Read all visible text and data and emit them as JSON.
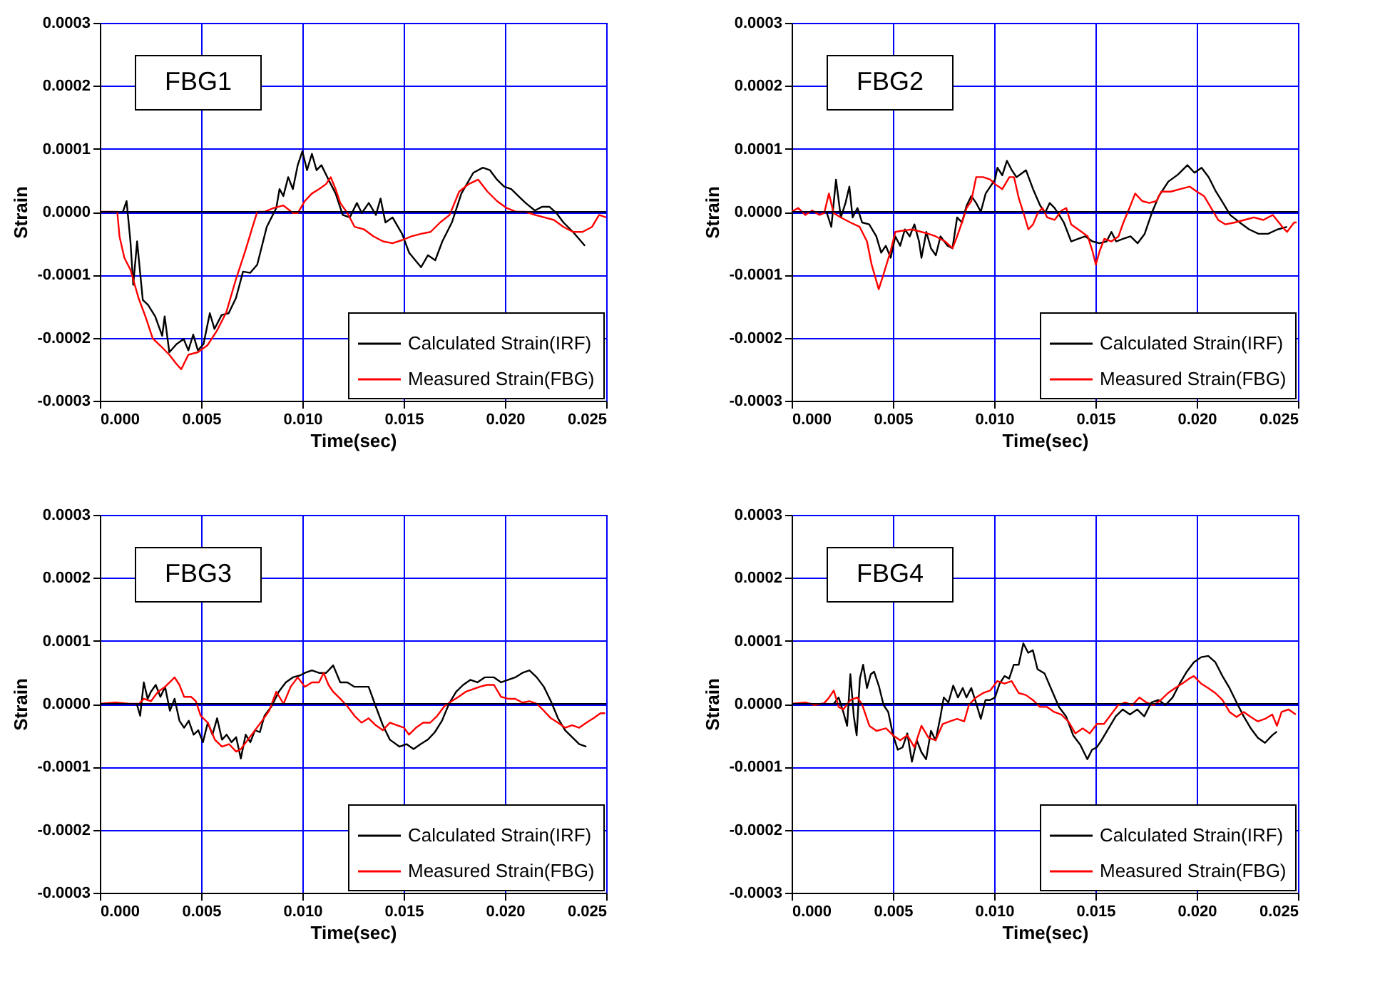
{
  "chart_data": [
    {
      "type": "line",
      "xlabel": "Time(sec)",
      "ylabel": "Strain",
      "annotations": [
        "FBG1"
      ],
      "xlim": [
        0,
        0.025
      ],
      "ylim": [
        -0.0003,
        0.0003
      ],
      "xticks": [
        {
          "value": 0,
          "label": "0.000"
        },
        {
          "value": 0.005,
          "label": "0.005"
        },
        {
          "value": 0.01,
          "label": "0.010"
        },
        {
          "value": 0.015,
          "label": "0.015"
        },
        {
          "value": 0.02,
          "label": "0.020"
        },
        {
          "value": 0.025,
          "label": "0.025"
        }
      ],
      "yticks": [
        {
          "value": -0.0003,
          "label": "-0.0003"
        },
        {
          "value": -0.0002,
          "label": "-0.0002"
        },
        {
          "value": -0.0001,
          "label": "-0.0001"
        },
        {
          "value": 0,
          "label": "0.0000"
        },
        {
          "value": 0.0001,
          "label": "0.0001"
        },
        {
          "value": 0.0002,
          "label": "0.0002"
        },
        {
          "value": 0.0003,
          "label": "0.0003"
        }
      ],
      "grid": true,
      "legend": "bottom right",
      "ref_lines": [
        {
          "axis": "y",
          "value": 0,
          "color": "#000000"
        }
      ],
      "series": [
        {
          "name": "Calculated Strain(IRF)",
          "color": "#000000",
          "x": [
            0.00114,
            0.00132,
            0.00151,
            0.00165,
            0.00184,
            0.00212,
            0.00238,
            0.00273,
            0.00308,
            0.0032,
            0.00343,
            0.00379,
            0.00414,
            0.00437,
            0.00461,
            0.00484,
            0.00512,
            0.00543,
            0.00566,
            0.00601,
            0.00636,
            0.00672,
            0.00707,
            0.00742,
            0.00777,
            0.00824,
            0.00871,
            0.00887,
            0.00906,
            0.0093,
            0.00953,
            0.00977,
            0.01,
            0.01023,
            0.01047,
            0.0107,
            0.01094,
            0.01129,
            0.01164,
            0.01199,
            0.01234,
            0.01269,
            0.01293,
            0.01328,
            0.01363,
            0.01386,
            0.0141,
            0.01445,
            0.01492,
            0.01527,
            0.01586,
            0.0162,
            0.01656,
            0.01691,
            0.01738,
            0.01785,
            0.01844,
            0.01891,
            0.01926,
            0.01961,
            0.01996,
            0.02031,
            0.02066,
            0.02102,
            0.02148,
            0.02184,
            0.02219,
            0.02254,
            0.02289,
            0.02336,
            0.02395
          ],
          "values": [
            0,
            1.7e-05,
            -4.7e-05,
            -0.000116,
            -4.7e-05,
            -0.00014,
            -0.000148,
            -0.000166,
            -0.000197,
            -0.000166,
            -0.000223,
            -0.00021,
            -0.000202,
            -0.00022,
            -0.000195,
            -0.00022,
            -0.00021,
            -0.000161,
            -0.000186,
            -0.000164,
            -0.000161,
            -0.000137,
            -9.5e-05,
            -9.7e-05,
            -8.4e-05,
            -2.4e-05,
            6e-06,
            3.6e-05,
            2.5e-05,
            5.5e-05,
            3.6e-05,
            7.4e-05,
            9.6e-05,
            6.6e-05,
            9.2e-05,
            6.6e-05,
            7.4e-05,
            5.1e-05,
            2.9e-05,
            -5e-06,
            -9e-06,
            1.4e-05,
            -2e-06,
            1.4e-05,
            -5e-06,
            2.1e-05,
            -1.7e-05,
            -9e-06,
            -3.5e-05,
            -6.5e-05,
            -8.8e-05,
            -6.9e-05,
            -7.7e-05,
            -4.7e-05,
            -1.7e-05,
            2.9e-05,
            6.2e-05,
            7e-05,
            6.6e-05,
            5.1e-05,
            4e-05,
            3.6e-05,
            2.5e-05,
            1.4e-05,
            2e-06,
            8e-06,
            8e-06,
            -2e-06,
            -1.7e-05,
            -3.2e-05,
            -5.4e-05
          ]
        },
        {
          "name": "Measured Strain(FBG)",
          "color": "#ff0000",
          "x": [
            0,
            0.00086,
            0.00097,
            0.00121,
            0.00151,
            0.00191,
            0.00226,
            0.00261,
            0.00297,
            0.00343,
            0.00379,
            0.00402,
            0.00437,
            0.00484,
            0.00531,
            0.00578,
            0.00625,
            0.00672,
            0.00718,
            0.00754,
            0.00777,
            0.00812,
            0.00859,
            0.00906,
            0.00953,
            0.00977,
            0.01012,
            0.01047,
            0.01082,
            0.01117,
            0.0114,
            0.01164,
            0.01187,
            0.01222,
            0.01258,
            0.01305,
            0.01351,
            0.01398,
            0.01445,
            0.01492,
            0.01539,
            0.01586,
            0.01633,
            0.0168,
            0.01727,
            0.01774,
            0.01821,
            0.01868,
            0.01914,
            0.01961,
            0.02008,
            0.02055,
            0.02102,
            0.02148,
            0.02195,
            0.02242,
            0.02289,
            0.02336,
            0.02383,
            0.0243,
            0.02465,
            0.025
          ],
          "values": [
            0,
            0,
            -3.9e-05,
            -7.3e-05,
            -9.2e-05,
            -0.000137,
            -0.000167,
            -0.000201,
            -0.000212,
            -0.000227,
            -0.000242,
            -0.00025,
            -0.000227,
            -0.000223,
            -0.000212,
            -0.000189,
            -0.000159,
            -0.000107,
            -6.2e-05,
            -2.4e-05,
            0,
            0,
            6e-06,
            1e-05,
            -2e-06,
            -2e-06,
            1.7e-05,
            2.9e-05,
            3.6e-05,
            4.4e-05,
            5.5e-05,
            3.6e-05,
            1.4e-05,
            -2e-06,
            -2.4e-05,
            -2.8e-05,
            -3.9e-05,
            -4.7e-05,
            -5e-05,
            -4.5e-05,
            -3.9e-05,
            -3.5e-05,
            -3.2e-05,
            -1.7e-05,
            -5e-06,
            3.2e-05,
            4.4e-05,
            5.1e-05,
            3.2e-05,
            1.7e-05,
            6e-06,
            0,
            0,
            -5e-06,
            -9e-06,
            -1.3e-05,
            -2.4e-05,
            -3.2e-05,
            -3.2e-05,
            -2.4e-05,
            -5e-06,
            -9e-06
          ]
        }
      ]
    },
    {
      "type": "line",
      "xlabel": "Time(sec)",
      "ylabel": "Strain",
      "annotations": [
        "FBG2"
      ],
      "xlim": [
        0,
        0.025
      ],
      "ylim": [
        -0.0003,
        0.0003
      ],
      "xticks": [
        {
          "value": 0,
          "label": "0.000"
        },
        {
          "value": 0.005,
          "label": "0.005"
        },
        {
          "value": 0.01,
          "label": "0.010"
        },
        {
          "value": 0.015,
          "label": "0.015"
        },
        {
          "value": 0.02,
          "label": "0.020"
        },
        {
          "value": 0.025,
          "label": "0.025"
        }
      ],
      "yticks": [
        {
          "value": -0.0003,
          "label": "-0.0003"
        },
        {
          "value": -0.0002,
          "label": "-0.0002"
        },
        {
          "value": -0.0001,
          "label": "-0.0001"
        },
        {
          "value": 0,
          "label": "0.0000"
        },
        {
          "value": 0.0001,
          "label": "0.0001"
        },
        {
          "value": 0.0002,
          "label": "0.0002"
        },
        {
          "value": 0.0003,
          "label": "0.0003"
        }
      ],
      "grid": true,
      "legend": "bottom right",
      "ref_lines": [
        {
          "axis": "y",
          "value": 0,
          "color": "#000000"
        }
      ],
      "series": [
        {
          "name": "Calculated Strain(IRF)",
          "color": "#000000",
          "x": [
            0.00172,
            0.00196,
            0.00219,
            0.00243,
            0.00266,
            0.00285,
            0.00301,
            0.00325,
            0.00348,
            0.00383,
            0.00418,
            0.00442,
            0.00465,
            0.00489,
            0.00512,
            0.00536,
            0.00559,
            0.00583,
            0.00606,
            0.00629,
            0.00641,
            0.00665,
            0.00688,
            0.00712,
            0.00735,
            0.0077,
            0.00794,
            0.00817,
            0.00841,
            0.00864,
            0.00887,
            0.00911,
            0.00934,
            0.00958,
            0.00981,
            0.01004,
            0.01016,
            0.0104,
            0.01063,
            0.01087,
            0.0111,
            0.01157,
            0.01192,
            0.01227,
            0.01251,
            0.01274,
            0.01298,
            0.01321,
            0.01344,
            0.0138,
            0.01415,
            0.0145,
            0.01485,
            0.0152,
            0.01555,
            0.01579,
            0.01602,
            0.01637,
            0.01673,
            0.01708,
            0.01743,
            0.01778,
            0.01813,
            0.0186,
            0.01907,
            0.01954,
            0.01989,
            0.02024,
            0.02059,
            0.02095,
            0.0213,
            0.02165,
            0.02212,
            0.02259,
            0.02305,
            0.02352,
            0.02399,
            0.02446
          ],
          "values": [
            0,
            -2.4e-05,
            5.1e-05,
            -9e-06,
            1.4e-05,
            4e-05,
            -9e-06,
            6e-06,
            -1.7e-05,
            -2e-05,
            -3.9e-05,
            -6.5e-05,
            -5.4e-05,
            -7.3e-05,
            -3.9e-05,
            -5.4e-05,
            -2.8e-05,
            -3.9e-05,
            -2e-05,
            -4.7e-05,
            -7.3e-05,
            -3.2e-05,
            -5.8e-05,
            -6.9e-05,
            -3.9e-05,
            -5.4e-05,
            -5.8e-05,
            -9e-06,
            -1.7e-05,
            1e-05,
            2.5e-05,
            1.4e-05,
            0,
            2.9e-05,
            4e-05,
            5.1e-05,
            7e-05,
            5.8e-05,
            8.1e-05,
            6.6e-05,
            5.5e-05,
            6.6e-05,
            3.6e-05,
            1e-05,
            -2e-06,
            1.4e-05,
            6e-06,
            -5e-06,
            -1.7e-05,
            -4.7e-05,
            -4.3e-05,
            -3.9e-05,
            -4.7e-05,
            -5e-05,
            -4.7e-05,
            -3.2e-05,
            -4.7e-05,
            -4.3e-05,
            -3.9e-05,
            -5e-05,
            -3.5e-05,
            -2e-06,
            2.5e-05,
            4.8e-05,
            5.9e-05,
            7.4e-05,
            6.2e-05,
            7e-05,
            5.5e-05,
            3.2e-05,
            1.4e-05,
            -5e-06,
            -1.7e-05,
            -2.8e-05,
            -3.5e-05,
            -3.5e-05,
            -2.8e-05,
            -2.4e-05
          ]
        },
        {
          "name": "Measured Strain(FBG)",
          "color": "#ff0000",
          "x": [
            0,
            0.00032,
            0.00067,
            0.00102,
            0.00137,
            0.00161,
            0.00184,
            0.00207,
            0.00243,
            0.0029,
            0.00336,
            0.00372,
            0.00395,
            0.0043,
            0.00454,
            0.00489,
            0.00512,
            0.00547,
            0.00594,
            0.00641,
            0.00676,
            0.00711,
            0.00758,
            0.00794,
            0.00817,
            0.00841,
            0.00864,
            0.00887,
            0.00911,
            0.00946,
            0.00981,
            0.01004,
            0.0104,
            0.01075,
            0.01098,
            0.01122,
            0.01145,
            0.01169,
            0.01192,
            0.01215,
            0.01239,
            0.01262,
            0.01298,
            0.01333,
            0.01356,
            0.0138,
            0.01415,
            0.01462,
            0.01485,
            0.01502,
            0.01521,
            0.01544,
            0.01579,
            0.01614,
            0.01638,
            0.01673,
            0.01696,
            0.01731,
            0.01766,
            0.01801,
            0.01825,
            0.01872,
            0.01919,
            0.01966,
            0.02001,
            0.02036,
            0.02071,
            0.02106,
            0.02142,
            0.02188,
            0.02235,
            0.02282,
            0.02329,
            0.02376,
            0.02423,
            0.02446,
            0.02481,
            0.02493
          ],
          "values": [
            0,
            6e-06,
            -5e-06,
            2e-06,
            -5e-06,
            -2e-06,
            2.9e-05,
            -2e-06,
            -9e-06,
            -1.7e-05,
            -2.4e-05,
            -4.7e-05,
            -8.4e-05,
            -0.000123,
            -9.9e-05,
            -6.2e-05,
            -3.2e-05,
            -3e-05,
            -2.8e-05,
            -3.2e-05,
            -3.5e-05,
            -3.9e-05,
            -4.7e-05,
            -5.8e-05,
            -3.9e-05,
            -1.7e-05,
            6e-06,
            1.7e-05,
            5.5e-05,
            5.5e-05,
            5.1e-05,
            4.4e-05,
            3.6e-05,
            5.5e-05,
            5.5e-05,
            2.1e-05,
            -2e-06,
            -2.8e-05,
            -2e-05,
            -2e-06,
            6e-06,
            -9e-06,
            -1.3e-05,
            2e-06,
            6e-06,
            -2e-05,
            -2.8e-05,
            -3.9e-05,
            -6.2e-05,
            -8.4e-05,
            -6.2e-05,
            -4.3e-05,
            -4.7e-05,
            -3.9e-05,
            -1.7e-05,
            1e-05,
            2.9e-05,
            1.7e-05,
            1.4e-05,
            1.7e-05,
            3.2e-05,
            3.2e-05,
            3.6e-05,
            4e-05,
            3.2e-05,
            2.5e-05,
            6e-06,
            -1.3e-05,
            -2e-05,
            -1.7e-05,
            -1.3e-05,
            -9e-06,
            -1.3e-05,
            -5e-06,
            -2.4e-05,
            -3.2e-05,
            -1.7e-05,
            -1.7e-05
          ]
        }
      ]
    },
    {
      "type": "line",
      "xlabel": "Time(sec)",
      "ylabel": "Strain",
      "annotations": [
        "FBG3"
      ],
      "xlim": [
        0,
        0.025
      ],
      "ylim": [
        -0.0003,
        0.0003
      ],
      "xticks": [
        {
          "value": 0,
          "label": "0.000"
        },
        {
          "value": 0.005,
          "label": "0.005"
        },
        {
          "value": 0.01,
          "label": "0.010"
        },
        {
          "value": 0.015,
          "label": "0.015"
        },
        {
          "value": 0.02,
          "label": "0.020"
        },
        {
          "value": 0.025,
          "label": "0.025"
        }
      ],
      "yticks": [
        {
          "value": -0.0003,
          "label": "-0.0003"
        },
        {
          "value": -0.0002,
          "label": "-0.0002"
        },
        {
          "value": -0.0001,
          "label": "-0.0001"
        },
        {
          "value": 0,
          "label": "0.0000"
        },
        {
          "value": 0.0001,
          "label": "0.0001"
        },
        {
          "value": 0.0002,
          "label": "0.0002"
        },
        {
          "value": 0.0003,
          "label": "0.0003"
        }
      ],
      "grid": true,
      "legend": "bottom right",
      "ref_lines": [
        {
          "axis": "y",
          "value": 0,
          "color": "#000000"
        }
      ],
      "series": [
        {
          "name": "Calculated Strain(IRF)",
          "color": "#000000",
          "x": [
            0.00182,
            0.00199,
            0.00217,
            0.00236,
            0.00252,
            0.00276,
            0.00299,
            0.00322,
            0.00346,
            0.00369,
            0.00393,
            0.00416,
            0.00439,
            0.00463,
            0.00486,
            0.00509,
            0.00533,
            0.00556,
            0.00579,
            0.00603,
            0.00626,
            0.0065,
            0.00673,
            0.00696,
            0.0072,
            0.00743,
            0.00766,
            0.0079,
            0.00813,
            0.00848,
            0.00883,
            0.00918,
            0.00953,
            0.00988,
            0.01012,
            0.01047,
            0.01082,
            0.01117,
            0.01152,
            0.01187,
            0.01222,
            0.01257,
            0.01292,
            0.01327,
            0.01362,
            0.01397,
            0.01432,
            0.01479,
            0.01514,
            0.01549,
            0.01584,
            0.01619,
            0.01654,
            0.01689,
            0.01724,
            0.01759,
            0.01794,
            0.01829,
            0.01864,
            0.019,
            0.01946,
            0.01981,
            0.02016,
            0.02051,
            0.02086,
            0.02121,
            0.02157,
            0.02192,
            0.02227,
            0.02262,
            0.02297,
            0.02332,
            0.02367,
            0.02402
          ],
          "values": [
            0,
            -1.9e-05,
            3.4e-05,
            8e-06,
            1.9e-05,
            3e-05,
            1.1e-05,
            2.7e-05,
            -1.1e-05,
            8e-06,
            -2.7e-05,
            -3.8e-05,
            -2.7e-05,
            -4.9e-05,
            -4.2e-05,
            -6.1e-05,
            -3e-05,
            -4.9e-05,
            -2.3e-05,
            -5.7e-05,
            -4.9e-05,
            -6.1e-05,
            -5.3e-05,
            -8.7e-05,
            -4.9e-05,
            -6.1e-05,
            -4.2e-05,
            -4.5e-05,
            -1.9e-05,
            -4e-06,
            1.9e-05,
            3.4e-05,
            4.2e-05,
            4.5e-05,
            4.9e-05,
            5.3e-05,
            4.9e-05,
            4.9e-05,
            6.1e-05,
            3.4e-05,
            3.4e-05,
            2.7e-05,
            2.7e-05,
            2.7e-05,
            -4e-06,
            -3.4e-05,
            -5.7e-05,
            -6.8e-05,
            -6.4e-05,
            -7.2e-05,
            -6.4e-05,
            -5.7e-05,
            -4.5e-05,
            -2.7e-05,
            0,
            1.9e-05,
            3e-05,
            3.8e-05,
            3.4e-05,
            4.2e-05,
            4.2e-05,
            3.4e-05,
            3.8e-05,
            4.2e-05,
            4.9e-05,
            5.3e-05,
            4.2e-05,
            2.7e-05,
            4e-06,
            -2.3e-05,
            -4.2e-05,
            -5.3e-05,
            -6.4e-05,
            -6.8e-05
          ]
        },
        {
          "name": "Measured Strain(FBG)",
          "color": "#ff0000",
          "x": [
            0,
            0.00077,
            0.00147,
            0.00194,
            0.00217,
            0.00252,
            0.00287,
            0.00322,
            0.00357,
            0.00369,
            0.00393,
            0.00416,
            0.00451,
            0.00474,
            0.00498,
            0.00533,
            0.00568,
            0.00603,
            0.00638,
            0.00673,
            0.00696,
            0.00731,
            0.00766,
            0.00801,
            0.00836,
            0.00871,
            0.00907,
            0.00942,
            0.00977,
            0.01012,
            0.01047,
            0.01082,
            0.01105,
            0.01129,
            0.01152,
            0.01187,
            0.01222,
            0.01257,
            0.01292,
            0.01327,
            0.01362,
            0.01397,
            0.01432,
            0.01467,
            0.01502,
            0.01526,
            0.01561,
            0.01596,
            0.01631,
            0.01666,
            0.01701,
            0.01736,
            0.01771,
            0.01806,
            0.01841,
            0.01876,
            0.01911,
            0.01946,
            0.01981,
            0.02016,
            0.02051,
            0.02086,
            0.02121,
            0.02157,
            0.02192,
            0.02227,
            0.02262,
            0.02297,
            0.02332,
            0.02367,
            0.02402,
            0.02437,
            0.02472,
            0.02495
          ],
          "values": [
            0,
            2e-06,
            0,
            0,
            8e-06,
            4e-06,
            1.9e-05,
            2.7e-05,
            3.8e-05,
            4.2e-05,
            3e-05,
            1.1e-05,
            1.1e-05,
            4e-06,
            -1.9e-05,
            -3e-05,
            -5.7e-05,
            -6.8e-05,
            -6.4e-05,
            -7.6e-05,
            -7.2e-05,
            -5.7e-05,
            -4.2e-05,
            -2.7e-05,
            -1.1e-05,
            1.9e-05,
            0,
            2.7e-05,
            4.2e-05,
            2.7e-05,
            3.4e-05,
            3.4e-05,
            4.9e-05,
            3e-05,
            1.9e-05,
            8e-06,
            -4e-06,
            -1.9e-05,
            -3e-05,
            -2.3e-05,
            -3.4e-05,
            -4.2e-05,
            -3e-05,
            -3.4e-05,
            -3.8e-05,
            -4.9e-05,
            -3.8e-05,
            -3e-05,
            -3e-05,
            -1.9e-05,
            -4e-06,
            4e-06,
            1.1e-05,
            1.9e-05,
            2.3e-05,
            2.7e-05,
            3e-05,
            3e-05,
            1.1e-05,
            8e-06,
            8e-06,
            2e-06,
            4e-06,
            0,
            -1.1e-05,
            -2.3e-05,
            -3e-05,
            -3.8e-05,
            -3.4e-05,
            -3.8e-05,
            -3e-05,
            -2.3e-05,
            -1.5e-05,
            -1.5e-05
          ]
        }
      ]
    },
    {
      "type": "line",
      "xlabel": "Time(sec)",
      "ylabel": "Strain",
      "annotations": [
        "FBG4"
      ],
      "xlim": [
        0,
        0.025
      ],
      "ylim": [
        -0.0003,
        0.0003
      ],
      "xticks": [
        {
          "value": 0,
          "label": "0.000"
        },
        {
          "value": 0.005,
          "label": "0.005"
        },
        {
          "value": 0.01,
          "label": "0.010"
        },
        {
          "value": 0.015,
          "label": "0.015"
        },
        {
          "value": 0.02,
          "label": "0.020"
        },
        {
          "value": 0.025,
          "label": "0.025"
        }
      ],
      "yticks": [
        {
          "value": -0.0003,
          "label": "-0.0003"
        },
        {
          "value": -0.0002,
          "label": "-0.0002"
        },
        {
          "value": -0.0001,
          "label": "-0.0001"
        },
        {
          "value": 0,
          "label": "0.0000"
        },
        {
          "value": 0.0001,
          "label": "0.0001"
        },
        {
          "value": 0.0002,
          "label": "0.0002"
        },
        {
          "value": 0.0003,
          "label": "0.0003"
        }
      ],
      "grid": true,
      "legend": "bottom right",
      "ref_lines": [
        {
          "axis": "y",
          "value": 0,
          "color": "#000000"
        }
      ],
      "series": [
        {
          "name": "Calculated Strain(IRF)",
          "color": "#000000",
          "x": [
            0.00208,
            0.00232,
            0.00255,
            0.00274,
            0.0029,
            0.00307,
            0.00321,
            0.00337,
            0.00353,
            0.00372,
            0.00391,
            0.00407,
            0.00431,
            0.00454,
            0.00477,
            0.00501,
            0.00524,
            0.00548,
            0.00571,
            0.00594,
            0.00618,
            0.00641,
            0.00664,
            0.00688,
            0.00711,
            0.00735,
            0.00751,
            0.00774,
            0.00798,
            0.00821,
            0.00845,
            0.00863,
            0.00887,
            0.0091,
            0.00934,
            0.00957,
            0.0098,
            0.01004,
            0.01027,
            0.01051,
            0.01074,
            0.01097,
            0.01121,
            0.01144,
            0.01168,
            0.01191,
            0.01214,
            0.01249,
            0.01285,
            0.0132,
            0.01355,
            0.0139,
            0.01425,
            0.0146,
            0.01483,
            0.01507,
            0.0153,
            0.01565,
            0.016,
            0.01635,
            0.0167,
            0.01706,
            0.01741,
            0.01776,
            0.01811,
            0.01846,
            0.01881,
            0.01916,
            0.01951,
            0.01986,
            0.02022,
            0.02057,
            0.02092,
            0.02127,
            0.02162,
            0.02197,
            0.02232,
            0.02267,
            0.02302,
            0.02337,
            0.02373,
            0.02396
          ],
          "values": [
            0,
            1e-05,
            -1.3e-05,
            -3.5e-05,
            4.7e-05,
            -2e-05,
            -5e-05,
            4e-05,
            6.2e-05,
            2.5e-05,
            4.7e-05,
            5.1e-05,
            2.8e-05,
            -2e-06,
            -1.3e-05,
            -5e-05,
            -7.3e-05,
            -6.9e-05,
            -4.7e-05,
            -9.2e-05,
            -5.8e-05,
            -7.7e-05,
            -8.8e-05,
            -4.3e-05,
            -5.8e-05,
            -2e-05,
            1e-05,
            2e-06,
            2.9e-05,
            1e-05,
            2.5e-05,
            1e-05,
            2.5e-05,
            2e-06,
            -2.4e-05,
            6e-06,
            6e-06,
            1e-05,
            3.2e-05,
            4.4e-05,
            4e-05,
            6.2e-05,
            6.2e-05,
            9.6e-05,
            8.1e-05,
            8.5e-05,
            5.5e-05,
            4.8e-05,
            2.1e-05,
            -5e-06,
            -2e-05,
            -5e-05,
            -6.5e-05,
            -8.8e-05,
            -7.3e-05,
            -6.9e-05,
            -5.8e-05,
            -3.9e-05,
            -2e-05,
            -9e-06,
            -1.7e-05,
            -9e-06,
            -2e-05,
            2e-06,
            6e-06,
            -2e-06,
            1e-05,
            3.2e-05,
            5.1e-05,
            6.6e-05,
            7.4e-05,
            7.6e-05,
            6.6e-05,
            4.4e-05,
            2.5e-05,
            2e-06,
            -2e-05,
            -3.9e-05,
            -5.4e-05,
            -6.2e-05,
            -5e-05,
            -4.4e-05
          ]
        },
        {
          "name": "Measured Strain(FBG)",
          "color": "#ff0000",
          "x": [
            0,
            0.00068,
            0.00115,
            0.00161,
            0.00185,
            0.00208,
            0.00232,
            0.00255,
            0.0029,
            0.00325,
            0.00349,
            0.00384,
            0.00419,
            0.00466,
            0.00501,
            0.00536,
            0.00571,
            0.00606,
            0.00641,
            0.00676,
            0.00711,
            0.00746,
            0.00781,
            0.00817,
            0.00852,
            0.00875,
            0.0091,
            0.00945,
            0.0098,
            0.01015,
            0.01051,
            0.01086,
            0.01121,
            0.01156,
            0.01191,
            0.01226,
            0.01261,
            0.01296,
            0.01331,
            0.01366,
            0.01401,
            0.01437,
            0.01472,
            0.01507,
            0.01542,
            0.01577,
            0.01612,
            0.01647,
            0.01682,
            0.01717,
            0.01752,
            0.01788,
            0.01823,
            0.01858,
            0.01893,
            0.01928,
            0.01963,
            0.01986,
            0.02022,
            0.02057,
            0.02092,
            0.02127,
            0.02162,
            0.02197,
            0.02232,
            0.02267,
            0.02302,
            0.02337,
            0.02373,
            0.02396,
            0.02419,
            0.02454,
            0.02489
          ],
          "values": [
            0,
            2e-06,
            -2e-06,
            1e-06,
            1e-05,
            2.1e-05,
            -5e-06,
            -9e-06,
            6e-06,
            1e-05,
            -2e-06,
            -3.5e-05,
            -4.3e-05,
            -3.9e-05,
            -5e-05,
            -5.8e-05,
            -5e-05,
            -6.9e-05,
            -3.5e-05,
            -5.4e-05,
            -5.8e-05,
            -3.2e-05,
            -2.8e-05,
            -2.4e-05,
            -2.8e-05,
            -2e-06,
            1e-05,
            1.7e-05,
            2.1e-05,
            3.6e-05,
            3.2e-05,
            3.6e-05,
            1.7e-05,
            1.4e-05,
            6e-06,
            -5e-06,
            -5e-06,
            -1.3e-05,
            -1.7e-05,
            -2.8e-05,
            -4.7e-05,
            -3.9e-05,
            -4.7e-05,
            -3.2e-05,
            -3.2e-05,
            -1.7e-05,
            -2e-06,
            2e-06,
            -2e-06,
            1e-05,
            2e-06,
            -2e-06,
            6e-06,
            1.7e-05,
            2.5e-05,
            3.2e-05,
            4e-05,
            4.4e-05,
            3.2e-05,
            2.5e-05,
            1.7e-05,
            6e-06,
            -1.3e-05,
            -2.1e-05,
            -1.3e-05,
            -2.1e-05,
            -2.8e-05,
            -2.4e-05,
            -1.7e-05,
            -3.5e-05,
            -1.3e-05,
            -9e-06,
            -1.7e-05
          ]
        }
      ]
    }
  ]
}
